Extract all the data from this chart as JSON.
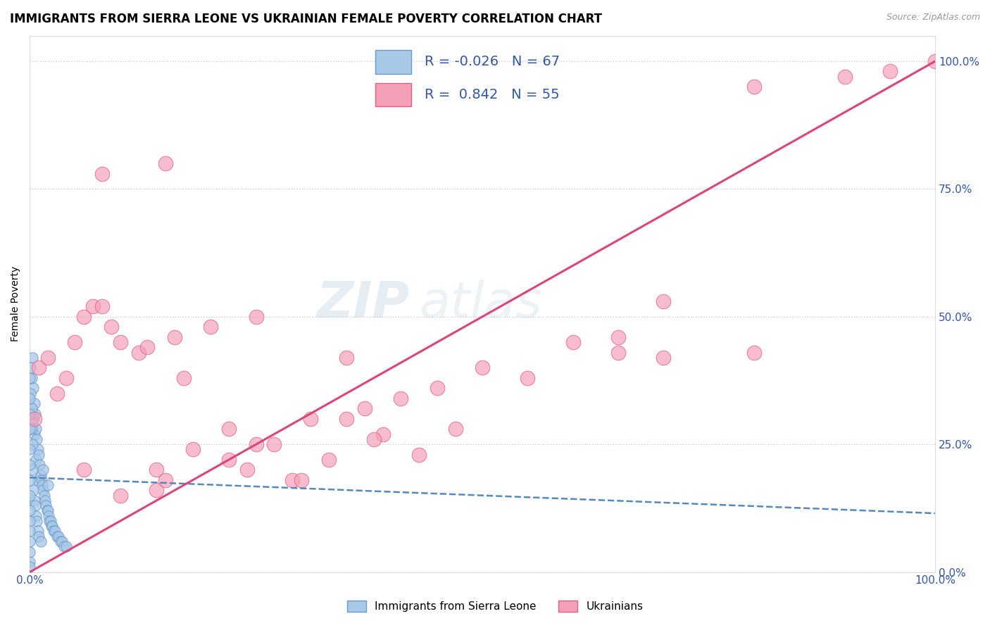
{
  "title": "IMMIGRANTS FROM SIERRA LEONE VS UKRAINIAN FEMALE POVERTY CORRELATION CHART",
  "source": "Source: ZipAtlas.com",
  "ylabel": "Female Poverty",
  "blue_label": "Immigrants from Sierra Leone",
  "pink_label": "Ukrainians",
  "blue_R": -0.026,
  "blue_N": 67,
  "pink_R": 0.842,
  "pink_N": 55,
  "blue_color": "#a8c8e8",
  "pink_color": "#f4a0b8",
  "blue_edge_color": "#6699cc",
  "pink_edge_color": "#e06080",
  "blue_line_color": "#5588bb",
  "pink_line_color": "#dd4477",
  "legend_text_color": "#3355aa",
  "grid_color": "#cccccc",
  "background_color": "#ffffff",
  "title_fontsize": 12,
  "axis_label_fontsize": 10,
  "tick_fontsize": 11,
  "xmin": 0.0,
  "xmax": 1.0,
  "ymin": 0.0,
  "ymax": 1.05,
  "yticks": [
    0.0,
    0.25,
    0.5,
    0.75,
    1.0
  ],
  "right_ytick_labels": [
    "0.0%",
    "25.0%",
    "50.0%",
    "75.0%",
    "100.0%"
  ],
  "xtick_labels_show": [
    "0.0%",
    "100.0%"
  ],
  "blue_x": [
    0.002,
    0.003,
    0.004,
    0.004,
    0.005,
    0.005,
    0.006,
    0.007,
    0.007,
    0.008,
    0.009,
    0.009,
    0.01,
    0.011,
    0.012,
    0.013,
    0.014,
    0.015,
    0.016,
    0.017,
    0.018,
    0.019,
    0.02,
    0.021,
    0.022,
    0.023,
    0.024,
    0.025,
    0.026,
    0.028,
    0.03,
    0.032,
    0.034,
    0.036,
    0.038,
    0.04,
    0.001,
    0.001,
    0.002,
    0.002,
    0.003,
    0.003,
    0.004,
    0.005,
    0.006,
    0.007,
    0.008,
    0.009,
    0.01,
    0.012,
    0.0,
    0.0,
    0.0,
    0.0,
    0.0,
    0.0,
    0.0,
    0.0,
    0.0,
    0.0,
    0.0,
    0.0,
    0.0,
    0.0,
    0.0,
    0.015,
    0.02
  ],
  "blue_y": [
    0.38,
    0.42,
    0.36,
    0.3,
    0.33,
    0.27,
    0.31,
    0.28,
    0.22,
    0.26,
    0.24,
    0.18,
    0.23,
    0.21,
    0.19,
    0.18,
    0.17,
    0.16,
    0.15,
    0.14,
    0.13,
    0.12,
    0.12,
    0.11,
    0.1,
    0.1,
    0.09,
    0.09,
    0.08,
    0.08,
    0.07,
    0.07,
    0.06,
    0.06,
    0.05,
    0.05,
    0.4,
    0.35,
    0.32,
    0.28,
    0.25,
    0.2,
    0.16,
    0.14,
    0.13,
    0.11,
    0.1,
    0.08,
    0.07,
    0.06,
    0.38,
    0.34,
    0.31,
    0.28,
    0.24,
    0.21,
    0.18,
    0.15,
    0.12,
    0.1,
    0.08,
    0.06,
    0.04,
    0.02,
    0.01,
    0.2,
    0.17
  ],
  "pink_x": [
    0.005,
    0.01,
    0.02,
    0.03,
    0.04,
    0.05,
    0.06,
    0.07,
    0.08,
    0.09,
    0.1,
    0.12,
    0.13,
    0.14,
    0.16,
    0.17,
    0.18,
    0.2,
    0.22,
    0.24,
    0.25,
    0.27,
    0.29,
    0.31,
    0.33,
    0.35,
    0.37,
    0.39,
    0.41,
    0.43,
    0.45,
    0.47,
    0.5,
    0.55,
    0.6,
    0.65,
    0.7,
    0.8,
    0.9,
    0.95,
    1.0,
    0.38,
    0.3,
    0.22,
    0.14,
    0.08,
    0.06,
    0.1,
    0.15,
    0.25,
    0.35,
    0.65,
    0.7,
    0.8,
    0.15
  ],
  "pink_y": [
    0.3,
    0.4,
    0.42,
    0.35,
    0.38,
    0.45,
    0.5,
    0.52,
    0.52,
    0.48,
    0.45,
    0.43,
    0.44,
    0.2,
    0.46,
    0.38,
    0.24,
    0.48,
    0.28,
    0.2,
    0.5,
    0.25,
    0.18,
    0.3,
    0.22,
    0.3,
    0.32,
    0.27,
    0.34,
    0.23,
    0.36,
    0.28,
    0.4,
    0.38,
    0.45,
    0.46,
    0.53,
    0.95,
    0.97,
    0.98,
    1.0,
    0.26,
    0.18,
    0.22,
    0.16,
    0.78,
    0.2,
    0.15,
    0.18,
    0.25,
    0.42,
    0.43,
    0.42,
    0.43,
    0.8
  ],
  "blue_trend_x": [
    0.0,
    1.0
  ],
  "blue_trend_y": [
    0.185,
    0.115
  ],
  "pink_trend_x": [
    0.0,
    1.0
  ],
  "pink_trend_y": [
    0.0,
    1.0
  ]
}
